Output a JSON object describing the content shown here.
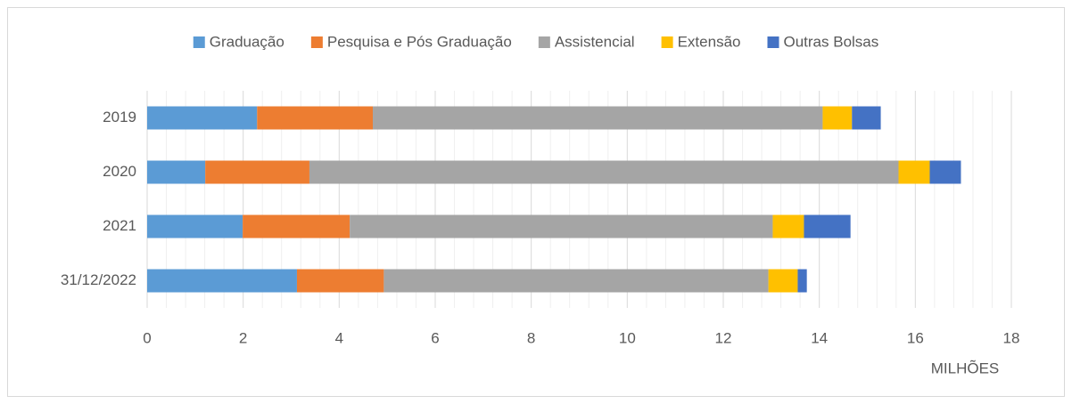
{
  "chart_data": {
    "type": "stacked-barh",
    "categories": [
      "2019",
      "2020",
      "2021",
      "31/12/2022"
    ],
    "series": [
      {
        "name": "Graduação",
        "color": "#5b9bd5",
        "values": [
          2.29,
          1.21,
          1.99,
          3.12
        ]
      },
      {
        "name": "Pesquisa e Pós Graduação",
        "color": "#ed7d31",
        "values": [
          2.41,
          2.17,
          2.23,
          1.81
        ]
      },
      {
        "name": "Assistencial",
        "color": "#a5a5a5",
        "values": [
          9.37,
          12.27,
          8.81,
          8.01
        ]
      },
      {
        "name": "Extensão",
        "color": "#ffc000",
        "values": [
          0.61,
          0.65,
          0.65,
          0.61
        ]
      },
      {
        "name": "Outras Bolsas",
        "color": "#4472c4",
        "values": [
          0.6,
          0.65,
          0.97,
          0.19
        ]
      }
    ],
    "x_label": "MILHÕES",
    "xlim": [
      0,
      18
    ],
    "xticks": [
      0,
      2,
      4,
      6,
      8,
      10,
      12,
      14,
      16,
      18
    ],
    "grid": true,
    "minor_grid": true,
    "legend": "top"
  }
}
